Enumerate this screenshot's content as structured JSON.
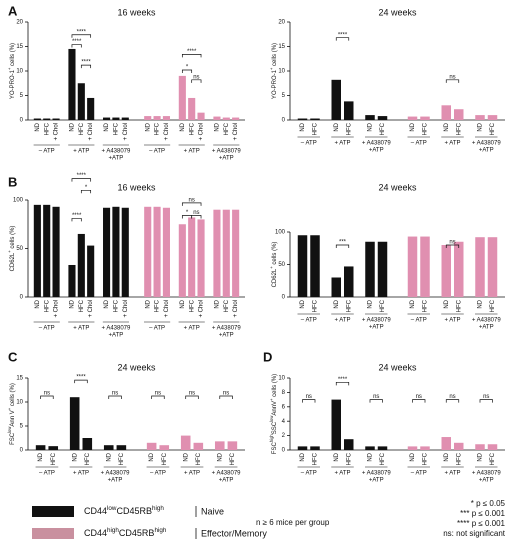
{
  "panels": [
    "A",
    "B",
    "C",
    "D"
  ],
  "chart_data": [
    {
      "type": "bar",
      "title": "16 weeks",
      "ylabel": [
        "YO-PRO-1",
        "+",
        " cells (%)"
      ],
      "categories": [
        "ND",
        "HFC",
        "+ Chol"
      ],
      "groups": [
        [
          "– ATP"
        ],
        [
          "+ ATP"
        ],
        [
          "+ A438079",
          "+ATP"
        ]
      ],
      "series": [
        {
          "color": "#111111",
          "values": [
            [
              0.3,
              0.3,
              0.3
            ],
            [
              14.5,
              7.5,
              4.5
            ],
            [
              0.5,
              0.5,
              0.5
            ]
          ]
        },
        {
          "color": "#e08fb0",
          "values": [
            [
              0.8,
              0.8,
              0.8
            ],
            [
              9,
              4.5,
              1.5
            ],
            [
              0.7,
              0.5,
              0.5
            ]
          ]
        }
      ],
      "ylim": [
        0,
        20
      ],
      "yticks": [
        0,
        5,
        10,
        15,
        20
      ],
      "annotations": [
        "****",
        "****",
        "****",
        "****",
        "*",
        "ns"
      ]
    },
    {
      "type": "bar",
      "title": "24 weeks",
      "ylabel": [
        "YO-PRO-1",
        "+",
        " cells (%)"
      ],
      "categories": [
        "ND",
        "HFC"
      ],
      "groups": [
        [
          "– ATP"
        ],
        [
          "+ ATP"
        ],
        [
          "+ A438079",
          "+ATP"
        ]
      ],
      "series": [
        {
          "color": "#111111",
          "values": [
            [
              0.3,
              0.3
            ],
            [
              8.2,
              3.8
            ],
            [
              1,
              0.8
            ]
          ]
        },
        {
          "color": "#e08fb0",
          "values": [
            [
              0.7,
              0.7
            ],
            [
              3,
              2.2
            ],
            [
              1,
              1
            ]
          ]
        }
      ],
      "ylim": [
        0,
        20
      ],
      "yticks": [
        0,
        5,
        10,
        15,
        20
      ],
      "annotations": [
        "****",
        "ns"
      ]
    },
    {
      "type": "bar",
      "title": "16 weeks",
      "ylabel": [
        "CD62L",
        "+",
        " cells (%)"
      ],
      "categories": [
        "ND",
        "HFC",
        "+ Chol"
      ],
      "groups": [
        [
          "– ATP"
        ],
        [
          "+ ATP"
        ],
        [
          "+ A438079",
          "+ATP"
        ]
      ],
      "series": [
        {
          "color": "#111111",
          "values": [
            [
              95,
              95,
              93
            ],
            [
              33,
              65,
              53
            ],
            [
              92,
              93,
              92
            ]
          ]
        },
        {
          "color": "#e08fb0",
          "values": [
            [
              93,
              93,
              92
            ],
            [
              75,
              82,
              80
            ],
            [
              90,
              90,
              90
            ]
          ]
        }
      ],
      "ylim": [
        0,
        100
      ],
      "yticks": [
        0,
        50,
        100
      ],
      "annotations": [
        "****",
        "****",
        "*",
        "ns",
        "*",
        "ns"
      ]
    },
    {
      "type": "bar",
      "title": "24 weeks",
      "ylabel": [
        "CD62L",
        "+",
        " cells (%)"
      ],
      "categories": [
        "ND",
        "HFC"
      ],
      "groups": [
        [
          "– ATP"
        ],
        [
          "+ ATP"
        ],
        [
          "+ A438079",
          "+ATP"
        ]
      ],
      "series": [
        {
          "color": "#111111",
          "values": [
            [
              95,
              95
            ],
            [
              30,
              47
            ],
            [
              85,
              85
            ]
          ]
        },
        {
          "color": "#e08fb0",
          "values": [
            [
              93,
              93
            ],
            [
              80,
              85
            ],
            [
              92,
              92
            ]
          ]
        }
      ],
      "ylim": [
        0,
        100
      ],
      "yticks": [
        0,
        50,
        100
      ],
      "annotations": [
        "***",
        "ns"
      ]
    },
    {
      "type": "bar",
      "title": "24 weeks",
      "ylabel": [
        "FSC",
        "low",
        "Ann V",
        "+",
        " cells (%)"
      ],
      "categories": [
        "ND",
        "HFC"
      ],
      "groups": [
        [
          "– ATP"
        ],
        [
          "+ ATP"
        ],
        [
          "+ A438079",
          "+ATP"
        ]
      ],
      "series": [
        {
          "color": "#111111",
          "values": [
            [
              1,
              0.8
            ],
            [
              11,
              2.5
            ],
            [
              1,
              1
            ]
          ]
        },
        {
          "color": "#e08fb0",
          "values": [
            [
              1.5,
              1
            ],
            [
              3,
              1.5
            ],
            [
              1.8,
              1.8
            ]
          ]
        }
      ],
      "ylim": [
        0,
        15
      ],
      "yticks": [
        0,
        5,
        10,
        15
      ],
      "annotations": [
        "ns",
        "****",
        "ns",
        "ns",
        "ns",
        "ns"
      ]
    },
    {
      "type": "bar",
      "title": "24 weeks",
      "ylabel": [
        "FSC",
        "high",
        "SSC",
        "low",
        "AnnV",
        "+",
        " cells (%)"
      ],
      "categories": [
        "ND",
        "HFC"
      ],
      "groups": [
        [
          "– ATP"
        ],
        [
          "+ ATP"
        ],
        [
          "+ A438079",
          "+ATP"
        ]
      ],
      "series": [
        {
          "color": "#111111",
          "values": [
            [
              0.5,
              0.5
            ],
            [
              7,
              1.5
            ],
            [
              0.5,
              0.5
            ]
          ]
        },
        {
          "color": "#e08fb0",
          "values": [
            [
              0.5,
              0.5
            ],
            [
              1.8,
              1
            ],
            [
              0.8,
              0.8
            ]
          ]
        }
      ],
      "ylim": [
        0,
        10
      ],
      "yticks": [
        0,
        2,
        4,
        6,
        8,
        10
      ],
      "annotations": [
        "ns",
        "****",
        "ns",
        "ns",
        "ns",
        "ns"
      ]
    }
  ],
  "legend": [
    {
      "label": [
        "CD44",
        "low",
        "CD45RB",
        "high"
      ],
      "name": "Naive",
      "color": "#111111"
    },
    {
      "label": [
        "CD44",
        "high",
        "CD45RB",
        "high"
      ],
      "name": "Effector/Memory",
      "color": "#c9909f"
    }
  ],
  "note": "n ≥ 6 mice per group",
  "significance": [
    "* p ≤ 0.05",
    "*** p ≤ 0.001",
    "**** p ≤ 0.001",
    "ns: not significant"
  ]
}
